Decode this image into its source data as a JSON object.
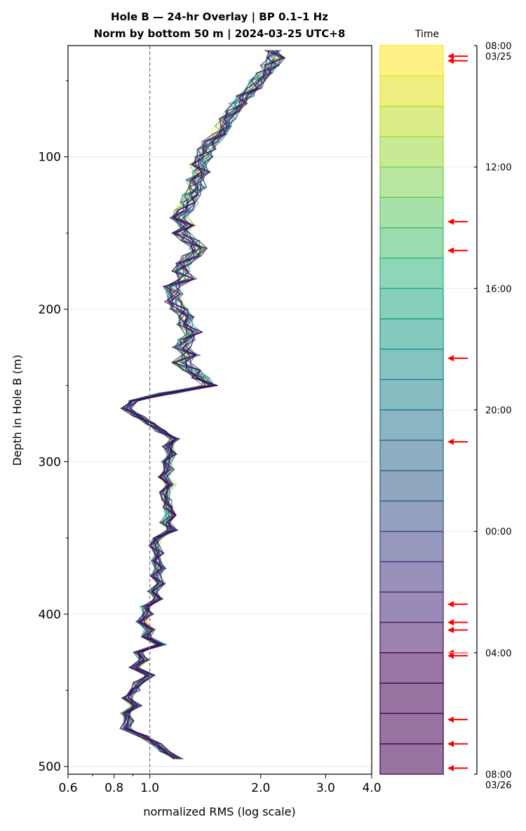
{
  "chart_data": {
    "type": "line",
    "title_line1": "Hole B — 24-hr Overlay  |  BP 0.1–1 Hz",
    "title_line2": "Norm by bottom 50 m  |  2024-03-25 UTC+8",
    "xlabel": "normalized RMS  (log scale)",
    "ylabel": "Depth in Hole B (m)",
    "x_scale": "log",
    "xlim": [
      0.6,
      4.0
    ],
    "ylim": [
      505,
      27
    ],
    "x_ticks": [
      0.6,
      0.8,
      1.0,
      2.0,
      3.0,
      4.0
    ],
    "x_tick_labels": [
      "0.6",
      "0.8",
      "1.0",
      "2.0",
      "3.0",
      "4.0"
    ],
    "y_ticks": [
      100,
      200,
      300,
      400,
      500
    ],
    "y_tick_labels": [
      "100",
      "200",
      "300",
      "400",
      "500"
    ],
    "reference_line_x": 1.0,
    "grid": true,
    "depth": [
      30,
      35,
      40,
      45,
      50,
      55,
      60,
      65,
      70,
      75,
      80,
      85,
      90,
      95,
      100,
      105,
      110,
      115,
      120,
      125,
      130,
      135,
      140,
      145,
      150,
      155,
      160,
      165,
      170,
      175,
      180,
      185,
      190,
      195,
      200,
      205,
      210,
      215,
      220,
      225,
      230,
      235,
      240,
      245,
      250,
      255,
      260,
      265,
      270,
      275,
      280,
      285,
      290,
      295,
      300,
      305,
      310,
      315,
      320,
      325,
      330,
      335,
      340,
      345,
      350,
      355,
      360,
      365,
      370,
      375,
      380,
      385,
      390,
      395,
      400,
      405,
      410,
      415,
      420,
      425,
      430,
      435,
      440,
      445,
      450,
      455,
      460,
      465,
      470,
      475,
      480,
      485,
      490,
      495
    ],
    "median_profile": [
      2.15,
      2.2,
      2.12,
      2.05,
      1.97,
      1.9,
      1.82,
      1.74,
      1.68,
      1.63,
      1.58,
      1.53,
      1.47,
      1.43,
      1.4,
      1.36,
      1.38,
      1.33,
      1.35,
      1.3,
      1.28,
      1.24,
      1.2,
      1.26,
      1.22,
      1.29,
      1.36,
      1.3,
      1.25,
      1.22,
      1.27,
      1.15,
      1.18,
      1.16,
      1.2,
      1.27,
      1.24,
      1.31,
      1.26,
      1.22,
      1.29,
      1.22,
      1.3,
      1.38,
      1.45,
      1.12,
      0.9,
      0.86,
      0.93,
      1.0,
      1.07,
      1.17,
      1.12,
      1.15,
      1.11,
      1.13,
      1.09,
      1.14,
      1.1,
      1.11,
      1.12,
      1.14,
      1.1,
      1.15,
      1.05,
      1.03,
      1.06,
      1.04,
      1.07,
      1.04,
      1.08,
      1.02,
      1.05,
      0.97,
      0.99,
      0.95,
      1.0,
      0.98,
      1.07,
      0.93,
      0.97,
      0.91,
      1.0,
      0.93,
      0.91,
      0.87,
      0.92,
      0.86,
      0.88,
      0.86,
      0.96,
      1.04,
      1.1,
      1.2
    ],
    "colorbar": {
      "title": "Time",
      "hour_offsets": [
        0,
        1,
        2,
        3,
        4,
        5,
        6,
        7,
        8,
        9,
        10,
        11,
        12,
        13,
        14,
        15,
        16,
        17,
        18,
        19,
        20,
        21,
        22,
        23
      ],
      "colors": [
        "#fde725",
        "#dfe318",
        "#bddf26",
        "#9bd93c",
        "#7ad151",
        "#5ec962",
        "#44bf70",
        "#2fb47c",
        "#22a884",
        "#1e9c89",
        "#21918c",
        "#25858e",
        "#2a788e",
        "#2f6c8e",
        "#355f8d",
        "#3b528b",
        "#414487",
        "#453781",
        "#472a7a",
        "#481b6d",
        "#46075a",
        "#440154",
        "#440154",
        "#440154"
      ],
      "tick_labels": [
        "08:00\n03/25",
        "12:00",
        "16:00",
        "20:00",
        "00:00",
        "04:00",
        "08:00\n03/26"
      ],
      "tick_hours": [
        0,
        4,
        8,
        12,
        16,
        20,
        24
      ],
      "arrow_hours": [
        0.35,
        0.5,
        5.8,
        6.75,
        10.3,
        13.05,
        18.4,
        19.0,
        19.25,
        20.0,
        20.1,
        22.2,
        23.0,
        23.8
      ]
    }
  }
}
